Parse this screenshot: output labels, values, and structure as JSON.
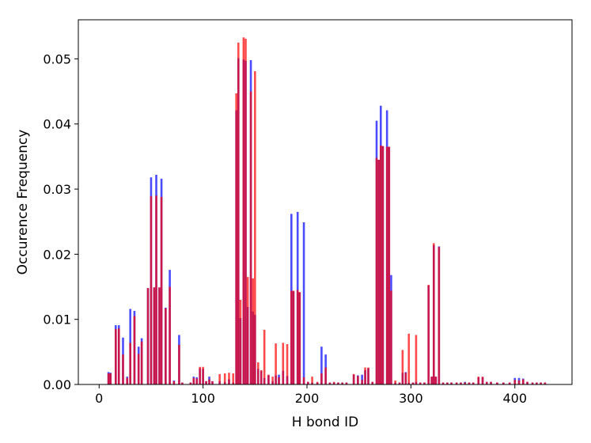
{
  "chart_data": {
    "type": "bar",
    "title": "",
    "xlabel": "H bond ID",
    "ylabel": "Occurence Frequency",
    "xlim": [
      -20,
      455
    ],
    "ylim": [
      0,
      0.056
    ],
    "xticks": [
      0,
      100,
      200,
      300,
      400
    ],
    "yticks": [
      0.0,
      0.01,
      0.02,
      0.03,
      0.04,
      0.05
    ],
    "ytick_labels": [
      "0.00",
      "0.01",
      "0.02",
      "0.03",
      "0.04",
      "0.05"
    ],
    "grid": false,
    "legend": "none",
    "colors": {
      "series_1": "#0000ff",
      "series_2": "#ff0000"
    },
    "series": [
      {
        "points": [
          [
            9,
            0.0019
          ],
          [
            11,
            0.0018
          ],
          [
            16,
            0.0091
          ],
          [
            19,
            0.0091
          ],
          [
            23,
            0.0072
          ],
          [
            27,
            0.0012
          ],
          [
            30,
            0.0116
          ],
          [
            34,
            0.0113
          ],
          [
            38,
            0.0058
          ],
          [
            41,
            0.0071
          ],
          [
            47,
            0.0148
          ],
          [
            50,
            0.0318
          ],
          [
            53,
            0.0149
          ],
          [
            55,
            0.0322
          ],
          [
            58,
            0.0149
          ],
          [
            60,
            0.0316
          ],
          [
            64,
            0.0118
          ],
          [
            68,
            0.0176
          ],
          [
            72,
            0.0006
          ],
          [
            77,
            0.0076
          ],
          [
            80,
            0.0003
          ],
          [
            88,
            0.0003
          ],
          [
            91,
            0.0012
          ],
          [
            94,
            0.0011
          ],
          [
            97,
            0.0025
          ],
          [
            100,
            0.0024
          ],
          [
            103,
            0.0005
          ],
          [
            106,
            0.0012
          ],
          [
            109,
            0.0005
          ],
          [
            116,
            0.0005
          ],
          [
            121,
            0.0004
          ],
          [
            125,
            0.0008
          ],
          [
            129,
            0.0003
          ],
          [
            132,
            0.0421
          ],
          [
            134,
            0.0501
          ],
          [
            136,
            0.0102
          ],
          [
            139,
            0.0499
          ],
          [
            141,
            0.0497
          ],
          [
            143,
            0.0119
          ],
          [
            146,
            0.0498
          ],
          [
            148,
            0.0112
          ],
          [
            150,
            0.0107
          ],
          [
            153,
            0.0024
          ],
          [
            156,
            0.0021
          ],
          [
            159,
            0.001
          ],
          [
            163,
            0.0014
          ],
          [
            167,
            0.0005
          ],
          [
            170,
            0.0014
          ],
          [
            173,
            0.0015
          ],
          [
            177,
            0.0021
          ],
          [
            181,
            0.0013
          ],
          [
            185,
            0.0262
          ],
          [
            187,
            0.0143
          ],
          [
            191,
            0.0265
          ],
          [
            193,
            0.0141
          ],
          [
            197,
            0.0249
          ],
          [
            201,
            0.0004
          ],
          [
            205,
            0.0003
          ],
          [
            210,
            0.0003
          ],
          [
            214,
            0.0058
          ],
          [
            218,
            0.0046
          ],
          [
            222,
            0.0003
          ],
          [
            226,
            0.0003
          ],
          [
            230,
            0.0003
          ],
          [
            234,
            0.0003
          ],
          [
            238,
            0.0003
          ],
          [
            245,
            0.0015
          ],
          [
            249,
            0.0014
          ],
          [
            253,
            0.0015
          ],
          [
            256,
            0.0022
          ],
          [
            259,
            0.0025
          ],
          [
            263,
            0.0004
          ],
          [
            267,
            0.0405
          ],
          [
            269,
            0.0345
          ],
          [
            271,
            0.0428
          ],
          [
            273,
            0.0366
          ],
          [
            277,
            0.0421
          ],
          [
            279,
            0.0365
          ],
          [
            281,
            0.0168
          ],
          [
            285,
            0.0003
          ],
          [
            289,
            0.0003
          ],
          [
            292,
            0.0018
          ],
          [
            295,
            0.0019
          ],
          [
            298,
            0.0003
          ],
          [
            302,
            0.0003
          ],
          [
            305,
            0.0004
          ],
          [
            309,
            0.0003
          ],
          [
            313,
            0.0003
          ],
          [
            317,
            0.0152
          ],
          [
            320,
            0.0012
          ],
          [
            322,
            0.0214
          ],
          [
            324,
            0.0012
          ],
          [
            327,
            0.0212
          ],
          [
            331,
            0.0003
          ],
          [
            335,
            0.0003
          ],
          [
            339,
            0.0003
          ],
          [
            344,
            0.0003
          ],
          [
            348,
            0.0003
          ],
          [
            352,
            0.0004
          ],
          [
            356,
            0.0003
          ],
          [
            360,
            0.0003
          ],
          [
            365,
            0.0011
          ],
          [
            369,
            0.0011
          ],
          [
            373,
            0.0004
          ],
          [
            377,
            0.0004
          ],
          [
            383,
            0.0003
          ],
          [
            389,
            0.0003
          ],
          [
            395,
            0.0003
          ],
          [
            400,
            0.001
          ],
          [
            404,
            0.001
          ],
          [
            408,
            0.0009
          ],
          [
            412,
            0.0004
          ],
          [
            417,
            0.0003
          ],
          [
            421,
            0.0003
          ],
          [
            425,
            0.0003
          ],
          [
            429,
            0.0003
          ]
        ]
      },
      {
        "points": [
          [
            9,
            0.0017
          ],
          [
            11,
            0.0017
          ],
          [
            16,
            0.0085
          ],
          [
            19,
            0.0086
          ],
          [
            23,
            0.0046
          ],
          [
            27,
            0.001
          ],
          [
            30,
            0.0064
          ],
          [
            34,
            0.0105
          ],
          [
            38,
            0.0047
          ],
          [
            41,
            0.0066
          ],
          [
            47,
            0.0148
          ],
          [
            50,
            0.0289
          ],
          [
            53,
            0.0149
          ],
          [
            55,
            0.029
          ],
          [
            58,
            0.0149
          ],
          [
            60,
            0.0288
          ],
          [
            64,
            0.0117
          ],
          [
            68,
            0.015
          ],
          [
            72,
            0.0005
          ],
          [
            77,
            0.0061
          ],
          [
            80,
            0.0003
          ],
          [
            88,
            0.0003
          ],
          [
            91,
            0.001
          ],
          [
            94,
            0.0009
          ],
          [
            97,
            0.0027
          ],
          [
            100,
            0.0027
          ],
          [
            103,
            0.0005
          ],
          [
            106,
            0.0008
          ],
          [
            109,
            0.0005
          ],
          [
            116,
            0.0016
          ],
          [
            121,
            0.0017
          ],
          [
            125,
            0.0018
          ],
          [
            129,
            0.0017
          ],
          [
            132,
            0.0447
          ],
          [
            134,
            0.0525
          ],
          [
            136,
            0.013
          ],
          [
            139,
            0.0533
          ],
          [
            141,
            0.0531
          ],
          [
            143,
            0.0165
          ],
          [
            146,
            0.045
          ],
          [
            148,
            0.0163
          ],
          [
            150,
            0.0481
          ],
          [
            153,
            0.0034
          ],
          [
            156,
            0.0022
          ],
          [
            159,
            0.0084
          ],
          [
            163,
            0.0015
          ],
          [
            167,
            0.0012
          ],
          [
            170,
            0.0063
          ],
          [
            173,
            0.0011
          ],
          [
            177,
            0.0064
          ],
          [
            181,
            0.0062
          ],
          [
            185,
            0.0144
          ],
          [
            187,
            0.0144
          ],
          [
            191,
            0.0145
          ],
          [
            193,
            0.0142
          ],
          [
            197,
            0.0011
          ],
          [
            201,
            0.0004
          ],
          [
            205,
            0.0012
          ],
          [
            210,
            0.0004
          ],
          [
            214,
            0.0017
          ],
          [
            218,
            0.0026
          ],
          [
            222,
            0.0003
          ],
          [
            226,
            0.0004
          ],
          [
            230,
            0.0003
          ],
          [
            234,
            0.0003
          ],
          [
            238,
            0.0003
          ],
          [
            245,
            0.0016
          ],
          [
            249,
            0.0013
          ],
          [
            253,
            0.0007
          ],
          [
            256,
            0.0026
          ],
          [
            259,
            0.0026
          ],
          [
            263,
            0.0004
          ],
          [
            267,
            0.0348
          ],
          [
            269,
            0.0345
          ],
          [
            271,
            0.0367
          ],
          [
            273,
            0.0366
          ],
          [
            277,
            0.0365
          ],
          [
            279,
            0.0365
          ],
          [
            281,
            0.0144
          ],
          [
            285,
            0.0006
          ],
          [
            289,
            0.0003
          ],
          [
            292,
            0.0053
          ],
          [
            295,
            0.0018
          ],
          [
            298,
            0.0078
          ],
          [
            302,
            0.0003
          ],
          [
            305,
            0.0076
          ],
          [
            309,
            0.0003
          ],
          [
            313,
            0.0003
          ],
          [
            317,
            0.0153
          ],
          [
            320,
            0.0012
          ],
          [
            322,
            0.0217
          ],
          [
            324,
            0.0012
          ],
          [
            327,
            0.0211
          ],
          [
            331,
            0.0003
          ],
          [
            335,
            0.0003
          ],
          [
            339,
            0.0003
          ],
          [
            344,
            0.0003
          ],
          [
            348,
            0.0003
          ],
          [
            352,
            0.0003
          ],
          [
            356,
            0.0003
          ],
          [
            360,
            0.0003
          ],
          [
            365,
            0.0012
          ],
          [
            369,
            0.0012
          ],
          [
            373,
            0.0004
          ],
          [
            377,
            0.0004
          ],
          [
            383,
            0.0003
          ],
          [
            389,
            0.0003
          ],
          [
            395,
            0.0003
          ],
          [
            400,
            0.0007
          ],
          [
            404,
            0.0006
          ],
          [
            408,
            0.0008
          ],
          [
            412,
            0.0004
          ],
          [
            417,
            0.0003
          ],
          [
            421,
            0.0003
          ],
          [
            425,
            0.0003
          ],
          [
            429,
            0.0003
          ]
        ]
      }
    ]
  }
}
